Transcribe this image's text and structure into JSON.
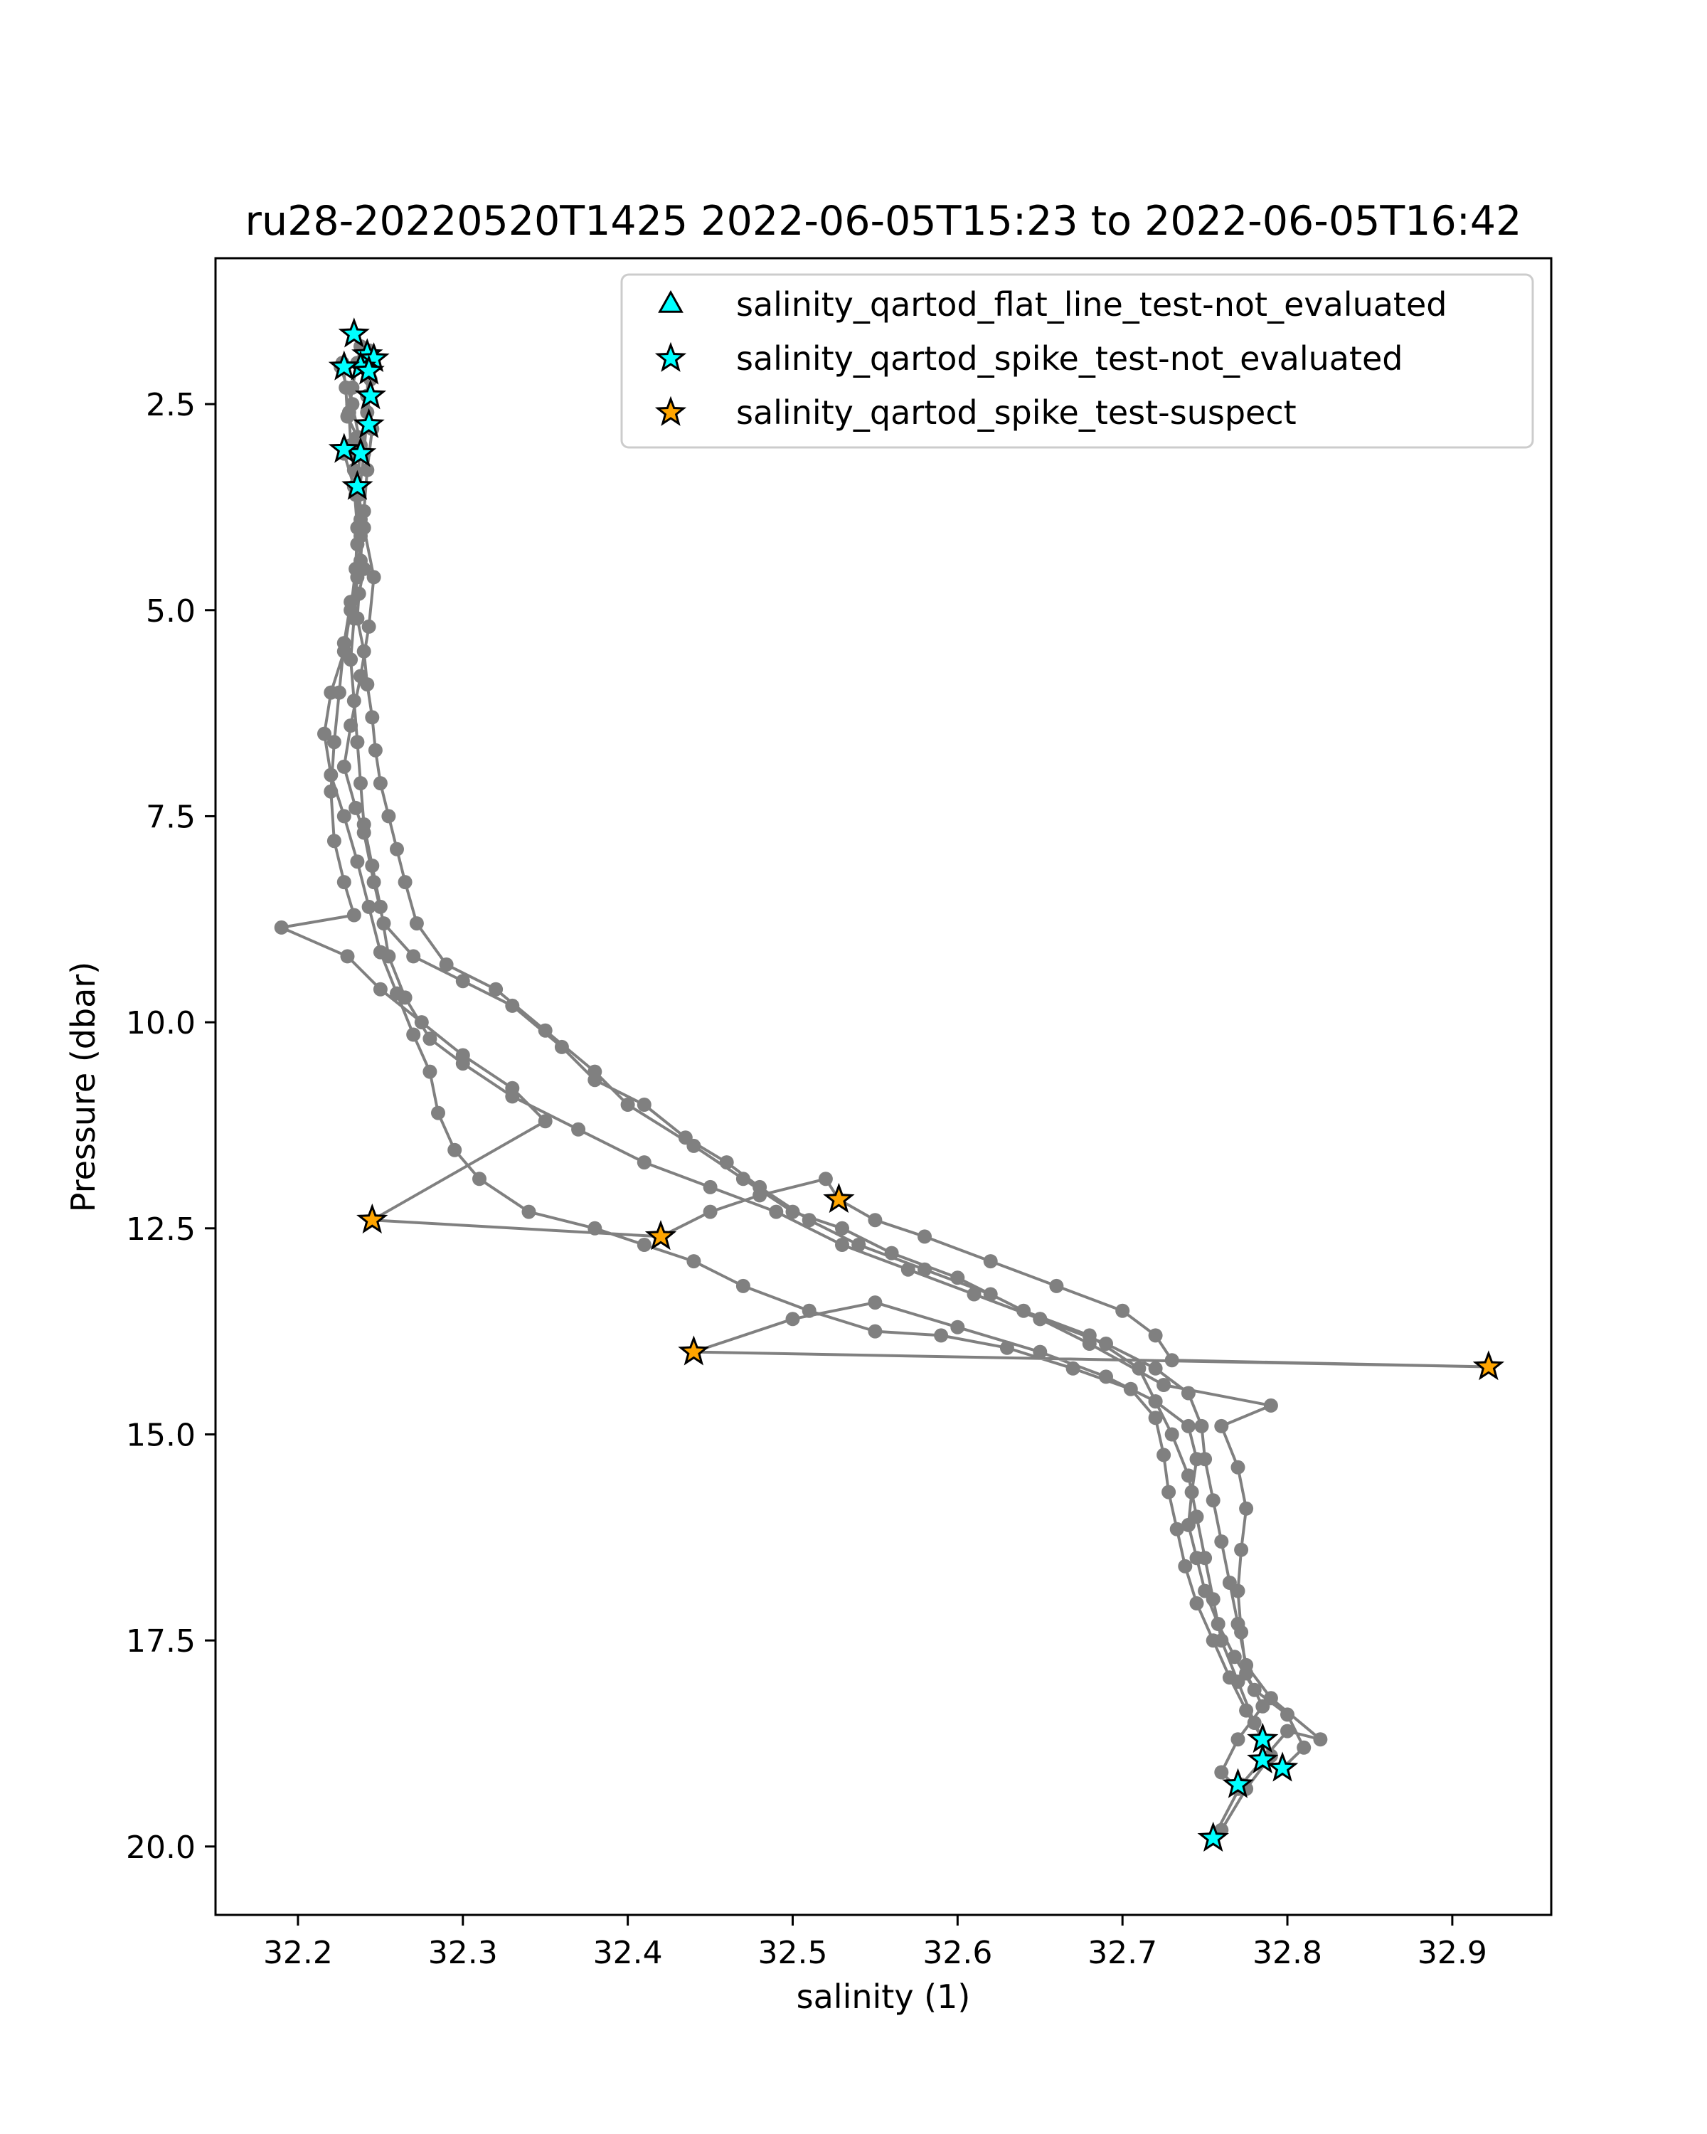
{
  "chart_data": {
    "type": "scatter",
    "title": "ru28-20220520T1425 2022-06-05T15:23 to 2022-06-05T16:42",
    "xlabel": "salinity (1)",
    "ylabel": "Pressure (dbar)",
    "xlim": [
      32.15,
      32.96
    ],
    "ylim": [
      20.83,
      0.73
    ],
    "y_inverted": true,
    "grid": false,
    "legend_position": "top-right",
    "xticks": [
      "32.2",
      "32.3",
      "32.4",
      "32.5",
      "32.6",
      "32.7",
      "32.8",
      "32.9"
    ],
    "yticks": [
      "2.5",
      "5.0",
      "7.5",
      "10.0",
      "12.5",
      "15.0",
      "17.5",
      "20.0"
    ],
    "colors": {
      "profile": "#808080",
      "not_evaluated": "#00ffff",
      "suspect": "#ffa500",
      "edge": "#000000"
    },
    "series": [
      {
        "kind": "profile",
        "points": [
          [
            32.234,
            1.65
          ],
          [
            32.238,
            1.8
          ],
          [
            32.236,
            2.0
          ],
          [
            32.233,
            2.3
          ],
          [
            32.231,
            2.6
          ],
          [
            32.232,
            3.0
          ],
          [
            32.234,
            3.3
          ],
          [
            32.235,
            3.6
          ],
          [
            32.238,
            3.9
          ],
          [
            32.236,
            4.2
          ],
          [
            32.24,
            4.5
          ],
          [
            32.237,
            4.8
          ],
          [
            32.236,
            5.1
          ],
          [
            32.24,
            5.5
          ],
          [
            32.242,
            5.9
          ],
          [
            32.245,
            6.3
          ],
          [
            32.247,
            6.7
          ],
          [
            32.25,
            7.1
          ],
          [
            32.255,
            7.5
          ],
          [
            32.26,
            7.9
          ],
          [
            32.265,
            8.3
          ],
          [
            32.272,
            8.8
          ],
          [
            32.29,
            9.3
          ],
          [
            32.32,
            9.6
          ],
          [
            32.35,
            10.1
          ],
          [
            32.38,
            10.6
          ],
          [
            32.4,
            11.0
          ],
          [
            32.44,
            11.5
          ],
          [
            32.47,
            11.9
          ],
          [
            32.5,
            12.3
          ],
          [
            32.53,
            12.5
          ],
          [
            32.56,
            12.8
          ],
          [
            32.6,
            13.1
          ],
          [
            32.64,
            13.5
          ],
          [
            32.68,
            13.8
          ],
          [
            32.71,
            14.2
          ],
          [
            32.72,
            14.6
          ],
          [
            32.73,
            15.0
          ],
          [
            32.74,
            15.5
          ],
          [
            32.745,
            16.0
          ],
          [
            32.75,
            16.5
          ],
          [
            32.755,
            17.0
          ],
          [
            32.76,
            17.5
          ],
          [
            32.77,
            18.0
          ],
          [
            32.78,
            18.5
          ],
          [
            32.79,
            18.9
          ],
          [
            32.775,
            19.3
          ],
          [
            32.76,
            19.8
          ],
          [
            32.755,
            19.9
          ],
          [
            32.772,
            19.25
          ],
          [
            32.8,
            18.6
          ],
          [
            32.82,
            18.7
          ],
          [
            32.79,
            18.2
          ],
          [
            32.775,
            17.8
          ],
          [
            32.77,
            17.3
          ],
          [
            32.765,
            16.8
          ],
          [
            32.76,
            16.3
          ],
          [
            32.755,
            15.8
          ],
          [
            32.75,
            15.3
          ],
          [
            32.748,
            14.9
          ],
          [
            32.74,
            14.5
          ],
          [
            32.72,
            14.2
          ],
          [
            32.69,
            13.9
          ],
          [
            32.65,
            13.6
          ],
          [
            32.61,
            13.3
          ],
          [
            32.57,
            13.0
          ],
          [
            32.53,
            12.7
          ],
          [
            32.49,
            12.3
          ],
          [
            32.45,
            12.0
          ],
          [
            32.41,
            11.7
          ],
          [
            32.37,
            11.3
          ],
          [
            32.33,
            10.9
          ],
          [
            32.3,
            10.5
          ],
          [
            32.28,
            10.2
          ],
          [
            32.265,
            9.7
          ],
          [
            32.255,
            9.2
          ],
          [
            32.25,
            8.6
          ],
          [
            32.245,
            8.1
          ],
          [
            32.24,
            7.6
          ],
          [
            32.238,
            7.1
          ],
          [
            32.236,
            6.6
          ],
          [
            32.234,
            6.1
          ],
          [
            32.232,
            5.6
          ],
          [
            32.234,
            5.1
          ],
          [
            32.236,
            4.6
          ],
          [
            32.238,
            4.1
          ],
          [
            32.237,
            3.6
          ],
          [
            32.24,
            3.1
          ],
          [
            32.242,
            2.6
          ],
          [
            32.244,
            2.2
          ],
          [
            32.246,
            1.95
          ],
          [
            32.243,
            1.85
          ],
          [
            32.242,
            2.4
          ],
          [
            32.245,
            2.8
          ],
          [
            32.242,
            3.3
          ],
          [
            32.24,
            3.8
          ],
          [
            32.238,
            4.4
          ],
          [
            32.232,
            4.9
          ],
          [
            32.228,
            5.4
          ],
          [
            32.225,
            6.0
          ],
          [
            32.222,
            6.6
          ],
          [
            32.22,
            7.2
          ],
          [
            32.222,
            7.8
          ],
          [
            32.228,
            8.3
          ],
          [
            32.234,
            8.7
          ],
          [
            32.19,
            8.85
          ],
          [
            32.23,
            9.2
          ],
          [
            32.25,
            9.6
          ],
          [
            32.275,
            10.0
          ],
          [
            32.3,
            10.4
          ],
          [
            32.33,
            10.8
          ],
          [
            32.35,
            11.2
          ],
          [
            32.245,
            12.4
          ],
          [
            32.42,
            12.6
          ],
          [
            32.45,
            12.3
          ],
          [
            32.48,
            12.1
          ],
          [
            32.52,
            11.9
          ],
          [
            32.528,
            12.15
          ],
          [
            32.55,
            12.4
          ],
          [
            32.58,
            12.6
          ],
          [
            32.62,
            12.9
          ],
          [
            32.66,
            13.2
          ],
          [
            32.7,
            13.5
          ],
          [
            32.72,
            13.8
          ],
          [
            32.73,
            14.1
          ],
          [
            32.922,
            14.18
          ],
          [
            32.44,
            14.0
          ],
          [
            32.5,
            13.6
          ],
          [
            32.55,
            13.4
          ],
          [
            32.6,
            13.7
          ],
          [
            32.65,
            14.0
          ],
          [
            32.69,
            14.3
          ],
          [
            32.72,
            14.6
          ],
          [
            32.74,
            14.9
          ],
          [
            32.745,
            15.3
          ],
          [
            32.742,
            15.7
          ],
          [
            32.74,
            16.1
          ],
          [
            32.745,
            16.5
          ],
          [
            32.75,
            16.9
          ],
          [
            32.758,
            17.3
          ],
          [
            32.768,
            17.7
          ],
          [
            32.78,
            18.1
          ],
          [
            32.8,
            18.4
          ],
          [
            32.81,
            18.8
          ],
          [
            32.797,
            19.05
          ],
          [
            32.785,
            18.95
          ],
          [
            32.785,
            18.7
          ],
          [
            32.775,
            18.35
          ],
          [
            32.765,
            17.95
          ],
          [
            32.755,
            17.5
          ],
          [
            32.745,
            17.05
          ],
          [
            32.738,
            16.6
          ],
          [
            32.733,
            16.15
          ],
          [
            32.728,
            15.7
          ],
          [
            32.725,
            15.25
          ],
          [
            32.72,
            14.8
          ],
          [
            32.705,
            14.45
          ],
          [
            32.67,
            14.2
          ],
          [
            32.63,
            13.95
          ],
          [
            32.59,
            13.8
          ],
          [
            32.55,
            13.75
          ],
          [
            32.51,
            13.5
          ],
          [
            32.47,
            13.2
          ],
          [
            32.44,
            12.9
          ],
          [
            32.41,
            12.7
          ],
          [
            32.38,
            12.5
          ],
          [
            32.34,
            12.3
          ],
          [
            32.31,
            11.9
          ],
          [
            32.295,
            11.55
          ],
          [
            32.285,
            11.1
          ],
          [
            32.28,
            10.6
          ],
          [
            32.27,
            10.15
          ],
          [
            32.26,
            9.65
          ],
          [
            32.25,
            9.15
          ],
          [
            32.243,
            8.6
          ],
          [
            32.236,
            8.05
          ],
          [
            32.228,
            7.5
          ],
          [
            32.22,
            7.0
          ],
          [
            32.216,
            6.5
          ],
          [
            32.22,
            6.0
          ],
          [
            32.228,
            5.5
          ],
          [
            32.232,
            5.0
          ],
          [
            32.235,
            4.5
          ],
          [
            32.236,
            4.0
          ],
          [
            32.234,
            3.5
          ],
          [
            32.228,
            3.1
          ],
          [
            32.236,
            2.9
          ],
          [
            32.23,
            2.65
          ],
          [
            32.229,
            2.3
          ],
          [
            32.227,
            2.0
          ],
          [
            32.226,
            2.05
          ],
          [
            32.233,
            2.5
          ],
          [
            32.238,
            3.0
          ],
          [
            32.236,
            3.5
          ],
          [
            32.24,
            4.0
          ],
          [
            32.246,
            4.6
          ],
          [
            32.243,
            5.2
          ],
          [
            32.238,
            5.8
          ],
          [
            32.232,
            6.4
          ],
          [
            32.228,
            6.9
          ],
          [
            32.235,
            7.4
          ],
          [
            32.24,
            7.7
          ],
          [
            32.246,
            8.3
          ],
          [
            32.252,
            8.8
          ],
          [
            32.27,
            9.2
          ],
          [
            32.3,
            9.5
          ],
          [
            32.33,
            9.8
          ],
          [
            32.36,
            10.3
          ],
          [
            32.38,
            10.7
          ],
          [
            32.41,
            11.0
          ],
          [
            32.435,
            11.4
          ],
          [
            32.46,
            11.7
          ],
          [
            32.48,
            12.0
          ],
          [
            32.51,
            12.4
          ],
          [
            32.54,
            12.7
          ],
          [
            32.58,
            13.0
          ],
          [
            32.62,
            13.3
          ],
          [
            32.65,
            13.6
          ],
          [
            32.68,
            13.9
          ],
          [
            32.725,
            14.4
          ],
          [
            32.79,
            14.65
          ],
          [
            32.76,
            14.9
          ],
          [
            32.77,
            15.4
          ],
          [
            32.775,
            15.9
          ],
          [
            32.772,
            16.4
          ],
          [
            32.77,
            16.9
          ],
          [
            32.772,
            17.4
          ],
          [
            32.775,
            17.9
          ],
          [
            32.785,
            18.3
          ],
          [
            32.77,
            18.7
          ],
          [
            32.76,
            19.1
          ],
          [
            32.77,
            19.3
          ]
        ]
      },
      {
        "kind": "marker",
        "name": "salinity_qartod_flat_line_test-not_evaluated",
        "marker": "triangle",
        "color": "#00ffff",
        "points": []
      },
      {
        "kind": "marker",
        "name": "salinity_qartod_spike_test-not_evaluated",
        "marker": "star",
        "color": "#00ffff",
        "points": [
          [
            32.234,
            1.65
          ],
          [
            32.242,
            1.9
          ],
          [
            32.246,
            1.95
          ],
          [
            32.238,
            2.05
          ],
          [
            32.228,
            2.05
          ],
          [
            32.243,
            2.1
          ],
          [
            32.244,
            2.4
          ],
          [
            32.243,
            2.75
          ],
          [
            32.238,
            3.1
          ],
          [
            32.228,
            3.05
          ],
          [
            32.236,
            3.5
          ],
          [
            32.785,
            18.7
          ],
          [
            32.785,
            18.95
          ],
          [
            32.797,
            19.05
          ],
          [
            32.77,
            19.25
          ],
          [
            32.755,
            19.9
          ]
        ]
      },
      {
        "kind": "marker",
        "name": "salinity_qartod_spike_test-suspect",
        "marker": "star",
        "color": "#ffa500",
        "points": [
          [
            32.528,
            12.15
          ],
          [
            32.245,
            12.4
          ],
          [
            32.42,
            12.6
          ],
          [
            32.44,
            14.0
          ],
          [
            32.922,
            14.18
          ]
        ]
      }
    ]
  }
}
